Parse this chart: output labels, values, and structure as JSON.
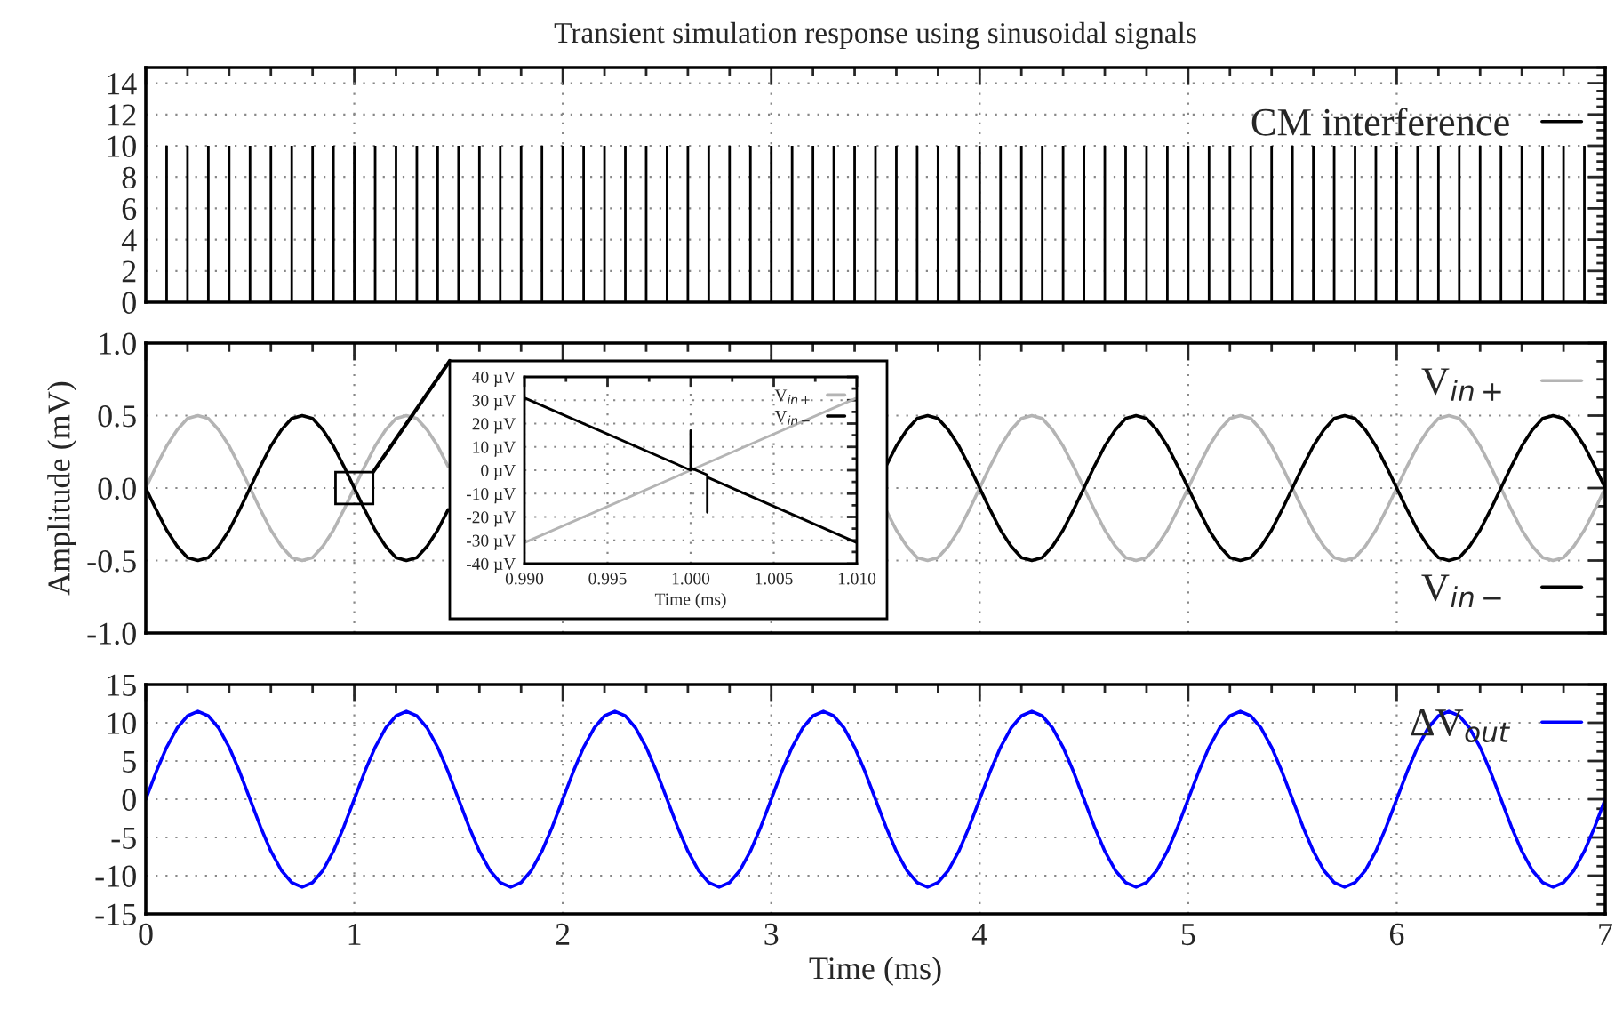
{
  "chart_data": [
    {
      "type": "bar",
      "title": "Transient simulation response using sinusoidal signals",
      "x": [
        0.1,
        0.2,
        0.3,
        0.4,
        0.5,
        0.6,
        0.7,
        0.8,
        0.9,
        1.0,
        1.1,
        1.2,
        1.3,
        1.4,
        1.5,
        1.6,
        1.7,
        1.8,
        1.9,
        2.0,
        2.1,
        2.2,
        2.3,
        2.4,
        2.5,
        2.6,
        2.7,
        2.8,
        2.9,
        3.0,
        3.1,
        3.2,
        3.3,
        3.4,
        3.5,
        3.6,
        3.7,
        3.8,
        3.9,
        4.0,
        4.1,
        4.2,
        4.3,
        4.4,
        4.5,
        4.6,
        4.7,
        4.8,
        4.9,
        5.0,
        5.1,
        5.2,
        5.3,
        5.4,
        5.5,
        5.6,
        5.7,
        5.8,
        5.9,
        6.0,
        6.1,
        6.2,
        6.3,
        6.4,
        6.5,
        6.6,
        6.7,
        6.8,
        6.9
      ],
      "series": [
        {
          "name": "CM interference",
          "color": "#000000",
          "values": [
            10,
            10,
            10,
            10,
            10,
            10,
            10,
            10,
            10,
            10,
            10,
            10,
            10,
            10,
            10,
            10,
            10,
            10,
            10,
            10,
            10,
            10,
            10,
            10,
            10,
            10,
            10,
            10,
            10,
            10,
            10,
            10,
            10,
            10,
            10,
            10,
            10,
            10,
            10,
            10,
            10,
            10,
            10,
            10,
            10,
            10,
            10,
            10,
            10,
            10,
            10,
            10,
            10,
            10,
            10,
            10,
            10,
            10,
            10,
            10,
            10,
            10,
            10,
            10,
            10,
            10,
            10,
            10,
            10
          ]
        }
      ],
      "xlim": [
        0,
        7
      ],
      "xticks": [
        0,
        1,
        2,
        3,
        4,
        5,
        6,
        7
      ],
      "ylim": [
        0,
        15
      ],
      "yticks": [
        0,
        2,
        4,
        6,
        8,
        10,
        12,
        14
      ],
      "tick_labels": "y",
      "grid": true,
      "legend": "top right"
    },
    {
      "type": "line",
      "ylabel": "Amplitude (mV)",
      "x": [
        0,
        0.05,
        0.1,
        0.15,
        0.2,
        0.25,
        0.3,
        0.35,
        0.4,
        0.45,
        0.5,
        0.55,
        0.6,
        0.65,
        0.7,
        0.75,
        0.8,
        0.85,
        0.9,
        0.95,
        1,
        1.05,
        1.1,
        1.15,
        1.2,
        1.25,
        1.3,
        1.35,
        1.4,
        1.45,
        1.5,
        1.55,
        1.6,
        1.65,
        1.7,
        1.75,
        1.8,
        1.85,
        1.9,
        1.95,
        2,
        2.05,
        2.1,
        2.15,
        2.2,
        2.25,
        2.3,
        2.35,
        2.4,
        2.45,
        2.5,
        2.55,
        2.6,
        2.65,
        2.7,
        2.75,
        2.8,
        2.85,
        2.9,
        2.95,
        3,
        3.05,
        3.1,
        3.15,
        3.2,
        3.25,
        3.3,
        3.35,
        3.4,
        3.45,
        3.5,
        3.55,
        3.6,
        3.65,
        3.7,
        3.75,
        3.8,
        3.85,
        3.9,
        3.95,
        4,
        4.05,
        4.1,
        4.15,
        4.2,
        4.25,
        4.3,
        4.35,
        4.4,
        4.45,
        4.5,
        4.55,
        4.6,
        4.65,
        4.7,
        4.75,
        4.8,
        4.85,
        4.9,
        4.95,
        5,
        5.05,
        5.1,
        5.15,
        5.2,
        5.25,
        5.3,
        5.35,
        5.4,
        5.45,
        5.5,
        5.55,
        5.6,
        5.65,
        5.7,
        5.75,
        5.8,
        5.85,
        5.9,
        5.95,
        6,
        6.05,
        6.1,
        6.15,
        6.2,
        6.25,
        6.3,
        6.35,
        6.4,
        6.45,
        6.5,
        6.55,
        6.6,
        6.65,
        6.7,
        6.75,
        6.8,
        6.85,
        6.9,
        6.95,
        7
      ],
      "series": [
        {
          "name": "V$_{in+}$",
          "color": "#b4b4b4",
          "values": [
            0,
            0.15,
            0.29,
            0.4,
            0.48,
            0.5,
            0.48,
            0.4,
            0.29,
            0.15,
            0,
            -0.15,
            -0.29,
            -0.4,
            -0.48,
            -0.5,
            -0.48,
            -0.4,
            -0.29,
            -0.15,
            0,
            0.15,
            0.29,
            0.4,
            0.48,
            0.5,
            0.48,
            0.4,
            0.29,
            0.15,
            null,
            null,
            null,
            null,
            null,
            null,
            null,
            null,
            null,
            null,
            null,
            null,
            null,
            null,
            null,
            null,
            null,
            null,
            null,
            null,
            null,
            null,
            null,
            null,
            null,
            null,
            null,
            null,
            null,
            null,
            null,
            null,
            null,
            null,
            null,
            null,
            null,
            null,
            null,
            null,
            null,
            -0.15,
            -0.29,
            -0.4,
            -0.48,
            -0.5,
            -0.48,
            -0.4,
            -0.29,
            -0.15,
            0,
            0.15,
            0.29,
            0.4,
            0.48,
            0.5,
            0.48,
            0.4,
            0.29,
            0.15,
            0,
            -0.15,
            -0.29,
            -0.4,
            -0.48,
            -0.5,
            -0.48,
            -0.4,
            -0.29,
            -0.15,
            0,
            0.15,
            0.29,
            0.4,
            0.48,
            0.5,
            0.48,
            0.4,
            0.29,
            0.15,
            0,
            -0.15,
            -0.29,
            -0.4,
            -0.48,
            -0.5,
            -0.48,
            -0.4,
            -0.29,
            -0.15,
            0,
            0.15,
            0.29,
            0.4,
            0.48,
            0.5,
            0.48,
            0.4,
            0.29,
            0.15,
            0,
            -0.15,
            -0.29,
            -0.4,
            -0.48,
            -0.5,
            -0.48,
            -0.4,
            -0.29,
            -0.15,
            0
          ]
        },
        {
          "name": "V$_{in−}$",
          "color": "#000000",
          "values": [
            0,
            -0.15,
            -0.29,
            -0.4,
            -0.48,
            -0.5,
            -0.48,
            -0.4,
            -0.29,
            -0.15,
            0,
            0.15,
            0.29,
            0.4,
            0.48,
            0.5,
            0.48,
            0.4,
            0.29,
            0.15,
            0,
            -0.15,
            -0.29,
            -0.4,
            -0.48,
            -0.5,
            -0.48,
            -0.4,
            -0.29,
            -0.15,
            null,
            null,
            null,
            null,
            null,
            null,
            null,
            null,
            null,
            null,
            null,
            null,
            null,
            null,
            null,
            null,
            null,
            null,
            null,
            null,
            null,
            null,
            null,
            null,
            null,
            null,
            null,
            null,
            null,
            null,
            null,
            null,
            null,
            null,
            null,
            null,
            null,
            null,
            null,
            null,
            null,
            0.15,
            0.29,
            0.4,
            0.48,
            0.5,
            0.48,
            0.4,
            0.29,
            0.15,
            0,
            -0.15,
            -0.29,
            -0.4,
            -0.48,
            -0.5,
            -0.48,
            -0.4,
            -0.29,
            -0.15,
            0,
            0.15,
            0.29,
            0.4,
            0.48,
            0.5,
            0.48,
            0.4,
            0.29,
            0.15,
            0,
            -0.15,
            -0.29,
            -0.4,
            -0.48,
            -0.5,
            -0.48,
            -0.4,
            -0.29,
            -0.15,
            0,
            0.15,
            0.29,
            0.4,
            0.48,
            0.5,
            0.48,
            0.4,
            0.29,
            0.15,
            0,
            -0.15,
            -0.29,
            -0.4,
            -0.48,
            -0.5,
            -0.48,
            -0.4,
            -0.29,
            -0.15,
            0,
            0.15,
            0.29,
            0.4,
            0.48,
            0.5,
            0.48,
            0.4,
            0.29,
            0.15,
            0
          ]
        }
      ],
      "xlim": [
        0,
        7
      ],
      "xticks": [
        0,
        1,
        2,
        3,
        4,
        5,
        6,
        7
      ],
      "ylim": [
        -1,
        1
      ],
      "yticks": [
        {
          "value": -1,
          "label": "-1.0"
        },
        {
          "value": -0.5,
          "label": "-0.5"
        },
        {
          "value": 0,
          "label": "0.0"
        },
        {
          "value": 0.5,
          "label": "0.5"
        },
        {
          "value": 1,
          "label": "1.0"
        }
      ],
      "tick_labels": "y",
      "grid": true,
      "legend": "right"
    },
    {
      "type": "line",
      "xlabel": "Time (ms)",
      "x": [
        0,
        0.05,
        0.1,
        0.15,
        0.2,
        0.25,
        0.3,
        0.35,
        0.4,
        0.45,
        0.5,
        0.55,
        0.6,
        0.65,
        0.7,
        0.75,
        0.8,
        0.85,
        0.9,
        0.95,
        1,
        1.05,
        1.1,
        1.15,
        1.2,
        1.25,
        1.3,
        1.35,
        1.4,
        1.45,
        1.5,
        1.55,
        1.6,
        1.65,
        1.7,
        1.75,
        1.8,
        1.85,
        1.9,
        1.95,
        2,
        2.05,
        2.1,
        2.15,
        2.2,
        2.25,
        2.3,
        2.35,
        2.4,
        2.45,
        2.5,
        2.55,
        2.6,
        2.65,
        2.7,
        2.75,
        2.8,
        2.85,
        2.9,
        2.95,
        3,
        3.05,
        3.1,
        3.15,
        3.2,
        3.25,
        3.3,
        3.35,
        3.4,
        3.45,
        3.5,
        3.55,
        3.6,
        3.65,
        3.7,
        3.75,
        3.8,
        3.85,
        3.9,
        3.95,
        4,
        4.05,
        4.1,
        4.15,
        4.2,
        4.25,
        4.3,
        4.35,
        4.4,
        4.45,
        4.5,
        4.55,
        4.6,
        4.65,
        4.7,
        4.75,
        4.8,
        4.85,
        4.9,
        4.95,
        5,
        5.05,
        5.1,
        5.15,
        5.2,
        5.25,
        5.3,
        5.35,
        5.4,
        5.45,
        5.5,
        5.55,
        5.6,
        5.65,
        5.7,
        5.75,
        5.8,
        5.85,
        5.9,
        5.95,
        6,
        6.05,
        6.1,
        6.15,
        6.2,
        6.25,
        6.3,
        6.35,
        6.4,
        6.45,
        6.5,
        6.55,
        6.6,
        6.65,
        6.7,
        6.75,
        6.8,
        6.85,
        6.9,
        6.95,
        7
      ],
      "series": [
        {
          "name": "ΔV$_{out}$",
          "color": "#0000ff",
          "values": [
            0,
            3.6,
            6.8,
            9.3,
            10.9,
            11.5,
            10.9,
            9.3,
            6.8,
            3.6,
            0,
            -3.6,
            -6.8,
            -9.3,
            -10.9,
            -11.5,
            -10.9,
            -9.3,
            -6.8,
            -3.6,
            0,
            3.6,
            6.8,
            9.3,
            10.9,
            11.5,
            10.9,
            9.3,
            6.8,
            3.6,
            0,
            -3.6,
            -6.8,
            -9.3,
            -10.9,
            -11.5,
            -10.9,
            -9.3,
            -6.8,
            -3.6,
            0,
            3.6,
            6.8,
            9.3,
            10.9,
            11.5,
            10.9,
            9.3,
            6.8,
            3.6,
            0,
            -3.6,
            -6.8,
            -9.3,
            -10.9,
            -11.5,
            -10.9,
            -9.3,
            -6.8,
            -3.6,
            0,
            3.6,
            6.8,
            9.3,
            10.9,
            11.5,
            10.9,
            9.3,
            6.8,
            3.6,
            0,
            -3.6,
            -6.8,
            -9.3,
            -10.9,
            -11.5,
            -10.9,
            -9.3,
            -6.8,
            -3.6,
            0,
            3.6,
            6.8,
            9.3,
            10.9,
            11.5,
            10.9,
            9.3,
            6.8,
            3.6,
            0,
            -3.6,
            -6.8,
            -9.3,
            -10.9,
            -11.5,
            -10.9,
            -9.3,
            -6.8,
            -3.6,
            0,
            3.6,
            6.8,
            9.3,
            10.9,
            11.5,
            10.9,
            9.3,
            6.8,
            3.6,
            0,
            -3.6,
            -6.8,
            -9.3,
            -10.9,
            -11.5,
            -10.9,
            -9.3,
            -6.8,
            -3.6,
            0,
            3.6,
            6.8,
            9.3,
            10.9,
            11.5,
            10.9,
            9.3,
            6.8,
            3.6,
            0,
            -3.6,
            -6.8,
            -9.3,
            -10.9,
            -11.5,
            -10.9,
            -9.3,
            -6.8,
            -3.6,
            0
          ]
        }
      ],
      "xlim": [
        0,
        7
      ],
      "xticks": [
        0,
        1,
        2,
        3,
        4,
        5,
        6,
        7
      ],
      "ylim": [
        -15,
        15
      ],
      "yticks": [
        -15,
        -10,
        -5,
        0,
        5,
        10,
        15
      ],
      "grid": true,
      "legend": "top right"
    },
    {
      "type": "line",
      "xlabel": "Time (ms)",
      "series": [
        {
          "name": "V$_{in+}$",
          "color": "#b4b4b4",
          "x": [
            0.99,
            1.01
          ],
          "values": [
            -31,
            31
          ]
        },
        {
          "name": "V$_{in−}$",
          "color": "#000000",
          "x": [
            0.99,
            1.0,
            1.0,
            1.0,
            1.001,
            1.001,
            1.001,
            1.01
          ],
          "values": [
            31,
            0,
            17,
            1,
            -2,
            -18,
            -3,
            -31
          ]
        }
      ],
      "xlim": [
        0.99,
        1.01
      ],
      "xticks": [
        {
          "value": 0.99,
          "label": "0.990"
        },
        {
          "value": 0.995,
          "label": "0.995"
        },
        {
          "value": 1.0,
          "label": "1.000"
        },
        {
          "value": 1.005,
          "label": "1.005"
        },
        {
          "value": 1.01,
          "label": "1.010"
        }
      ],
      "ylim": [
        -40,
        40
      ],
      "yticks": [
        {
          "value": -40,
          "label": "-40 µV"
        },
        {
          "value": -30,
          "label": "-30 µV"
        },
        {
          "value": -20,
          "label": "-20 µV"
        },
        {
          "value": -10,
          "label": "-10 µV"
        },
        {
          "value": 0,
          "label": "0 µV"
        },
        {
          "value": 10,
          "label": "10 µV"
        },
        {
          "value": 20,
          "label": "20 µV"
        },
        {
          "value": 30,
          "label": "30 µV"
        },
        {
          "value": 40,
          "label": "40 µV"
        }
      ],
      "grid": true,
      "legend": "top right"
    }
  ]
}
